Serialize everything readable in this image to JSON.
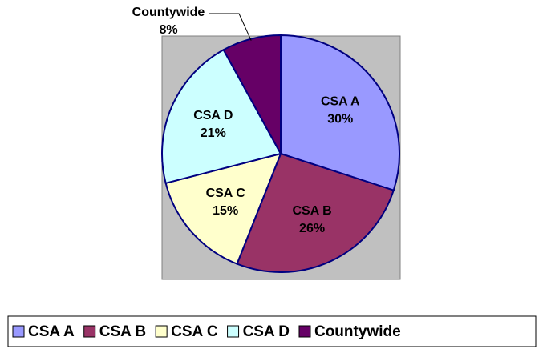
{
  "chart_data": {
    "type": "pie",
    "categories": [
      "CSA A",
      "CSA B",
      "CSA C",
      "CSA D",
      "Countywide"
    ],
    "values": [
      30,
      26,
      15,
      21,
      8
    ],
    "value_labels": [
      "30%",
      "26%",
      "15%",
      "21%",
      "8%"
    ],
    "colors": [
      "#9999ff",
      "#993366",
      "#ffffcc",
      "#ccffff",
      "#660066"
    ],
    "legend": "bottom"
  }
}
